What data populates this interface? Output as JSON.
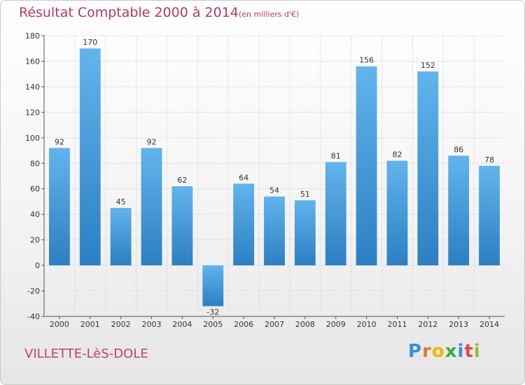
{
  "header": {
    "title": "Résultat Comptable 2000 à 2014",
    "subtitle": "(en milliers d'€)"
  },
  "footer": {
    "town": "VILLETTE-LèS-DOLE",
    "logo_text": "Proxiti",
    "logo_letters": [
      "P",
      "r",
      "o",
      "x",
      "i",
      "t",
      "i"
    ],
    "logo_colors": [
      "#3a8fd6",
      "#e8742a",
      "#f0b400",
      "#3cab3c",
      "#3a8fd6",
      "#e04848",
      "#8fbf2a"
    ]
  },
  "colors": {
    "bar_light": "#62b4ec",
    "bar_dark": "#2c7fc2",
    "grid": "#d4d4d4",
    "accent": "#b23a61"
  },
  "chart_data": {
    "type": "bar",
    "categories": [
      "2000",
      "2001",
      "2002",
      "2003",
      "2004",
      "2005",
      "2006",
      "2007",
      "2008",
      "2009",
      "2010",
      "2011",
      "2012",
      "2013",
      "2014"
    ],
    "values": [
      92,
      170,
      45,
      92,
      62,
      -32,
      64,
      54,
      51,
      81,
      156,
      82,
      152,
      86,
      78
    ],
    "data_labels": [
      "92",
      "170",
      "45",
      "92",
      "62",
      "-32",
      "64",
      "54",
      "51",
      "81",
      "156",
      "82",
      "152",
      "86",
      "78"
    ],
    "yticks": [
      180,
      160,
      140,
      120,
      100,
      80,
      60,
      40,
      20,
      0,
      -20,
      -40
    ],
    "ylim": [
      -40,
      180
    ],
    "grid": true,
    "legend": "none"
  }
}
